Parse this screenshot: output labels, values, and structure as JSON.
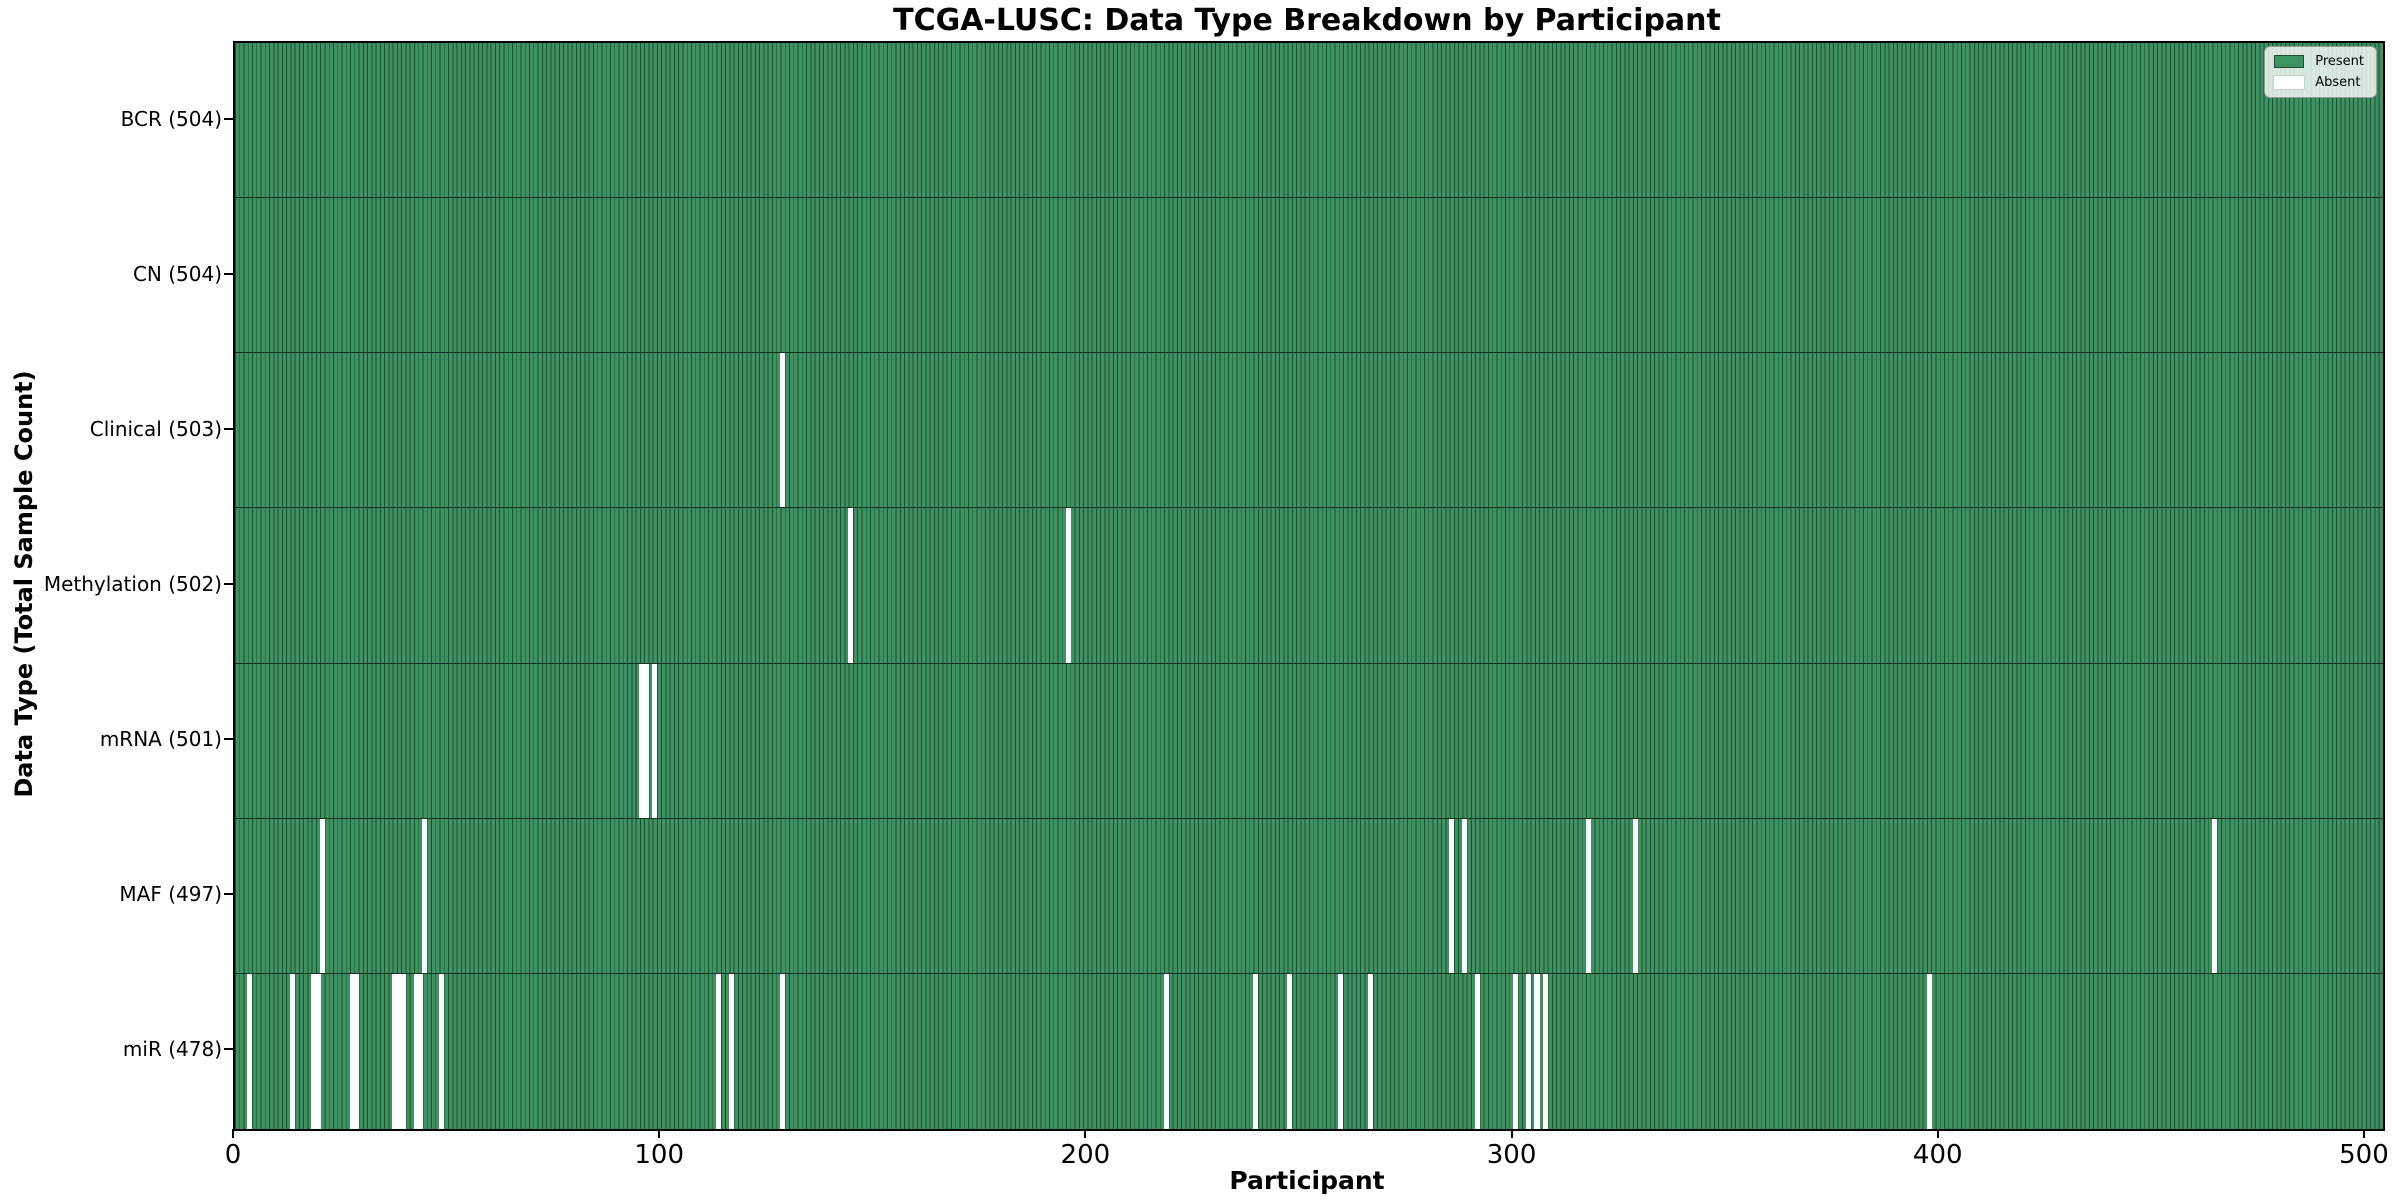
{
  "chart_data": {
    "type": "heatmap",
    "title": "TCGA-LUSC: Data Type Breakdown by Participant",
    "xlabel": "Participant",
    "ylabel": "Data Type (Total Sample Count)",
    "x_range": [
      0,
      504
    ],
    "n_participants": 504,
    "x_ticks": [
      0,
      100,
      200,
      300,
      400,
      500
    ],
    "grid": false,
    "legend_position": "upper right",
    "legend": [
      {
        "label": "Present",
        "color": "#3d9261"
      },
      {
        "label": "Absent",
        "color": "#ffffff"
      }
    ],
    "colors": {
      "present_fill": "#3d9261",
      "bar_edge": "#1f4c30",
      "absent_fill": "#ffffff",
      "row_separator": "#14301f",
      "axis": "#000000"
    },
    "rows": [
      {
        "label": "BCR (504)",
        "data_type": "BCR",
        "total_samples": 504,
        "absent_participants": []
      },
      {
        "label": "CN (504)",
        "data_type": "CN",
        "total_samples": 504,
        "absent_participants": []
      },
      {
        "label": "Clinical (503)",
        "data_type": "Clinical",
        "total_samples": 503,
        "absent_participants": [
          128
        ]
      },
      {
        "label": "Methylation (502)",
        "data_type": "Methylation",
        "total_samples": 502,
        "absent_participants": [
          144,
          195
        ]
      },
      {
        "label": "mRNA (501)",
        "data_type": "mRNA",
        "total_samples": 501,
        "absent_participants": [
          95,
          96,
          98
        ]
      },
      {
        "label": "MAF (497)",
        "data_type": "MAF",
        "total_samples": 497,
        "absent_participants": [
          20,
          44,
          285,
          288,
          317,
          328,
          464
        ]
      },
      {
        "label": "miR (478)",
        "data_type": "miR",
        "total_samples": 478,
        "absent_participants": [
          3,
          13,
          18,
          19,
          27,
          28,
          37,
          38,
          39,
          42,
          43,
          48,
          113,
          116,
          128,
          218,
          239,
          247,
          259,
          266,
          291,
          300,
          303,
          305,
          307,
          397
        ]
      }
    ]
  }
}
